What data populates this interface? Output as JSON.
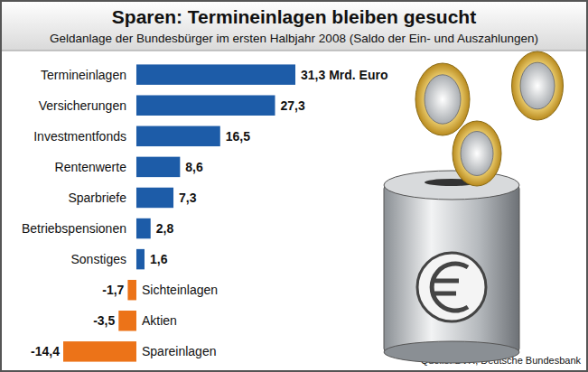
{
  "chart_data": {
    "type": "bar",
    "orientation": "horizontal",
    "title": "Sparen: Termineinlagen bleiben gesucht",
    "subtitle": "Geldanlage der Bundesbürger im ersten Halbjahr 2008 (Saldo der Ein- und Auszahlungen)",
    "source": "Quelle: BVR, Deutsche Bundesbank",
    "categories": [
      "Termineinlagen",
      "Versicherungen",
      "Investmentfonds",
      "Rentenwerte",
      "Sparbriefe",
      "Betriebspensionen",
      "Sonstiges",
      "Sichteinlagen",
      "Aktien",
      "Spareinlagen"
    ],
    "values": [
      31.3,
      27.3,
      16.5,
      8.6,
      7.3,
      2.8,
      1.6,
      -1.7,
      -3.5,
      -14.4
    ],
    "value_labels": [
      "31,3 Mrd. Euro",
      "27,3",
      "16,5",
      "8,6",
      "7,3",
      "2,8",
      "1,6",
      "-1,7",
      "-3,5",
      "-14,4"
    ],
    "colors": [
      "#1d5ca8",
      "#1d5ca8",
      "#1d5ca8",
      "#1d5ca8",
      "#1d5ca8",
      "#1d5ca8",
      "#1d5ca8",
      "#ec7318",
      "#ec7318",
      "#ec7318"
    ],
    "data_labels": true
  }
}
